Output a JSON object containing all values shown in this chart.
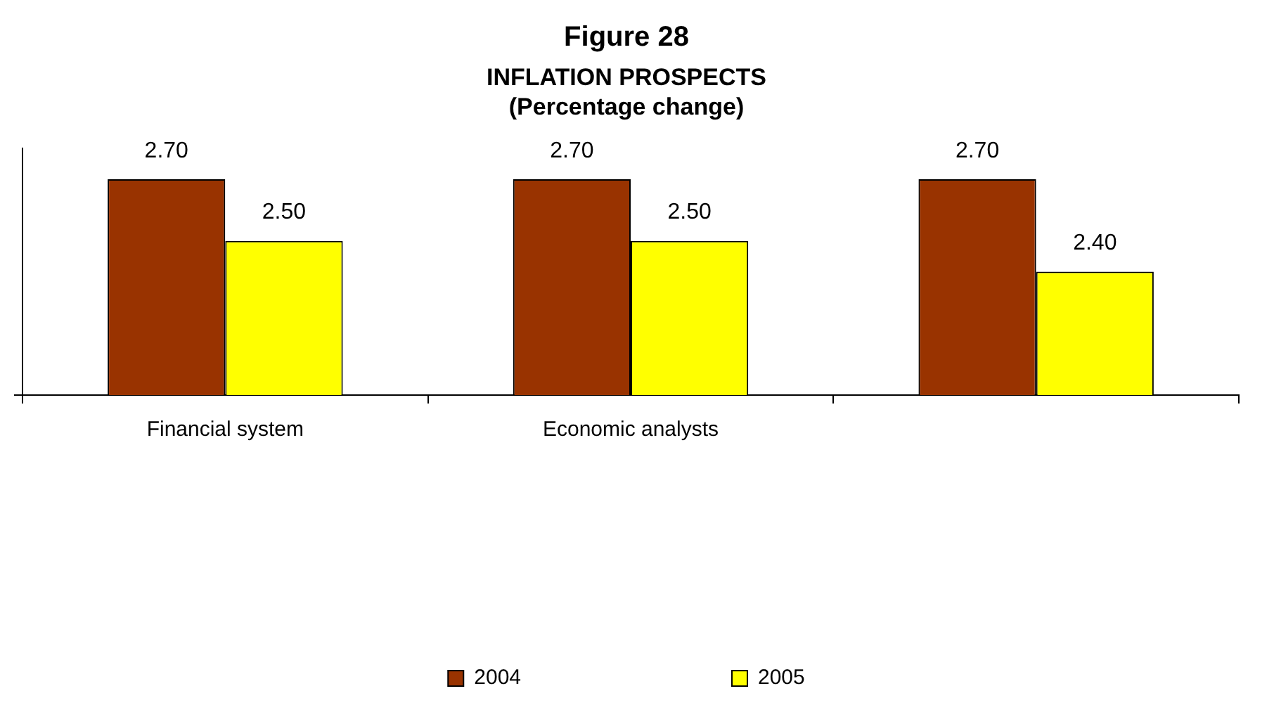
{
  "chart_data": {
    "type": "bar",
    "title": "Figure 28",
    "subtitle": "INFLATION PROSPECTS\n(Percentage change)",
    "categories": [
      "Financial system",
      "Economic analysts",
      null
    ],
    "series": [
      {
        "name": "2004",
        "color": "#993300",
        "values": [
          2.7,
          2.7,
          2.7
        ],
        "value_labels": [
          "2.70",
          "2.70",
          "2.70"
        ]
      },
      {
        "name": "2005",
        "color": "#ffff00",
        "values": [
          2.5,
          2.5,
          2.4
        ],
        "value_labels": [
          "2.50",
          "2.50",
          "2.40"
        ]
      }
    ],
    "ylim": [
      2,
      2.8
    ],
    "tick_labels": "x",
    "grid": false,
    "legend": "bottom"
  }
}
